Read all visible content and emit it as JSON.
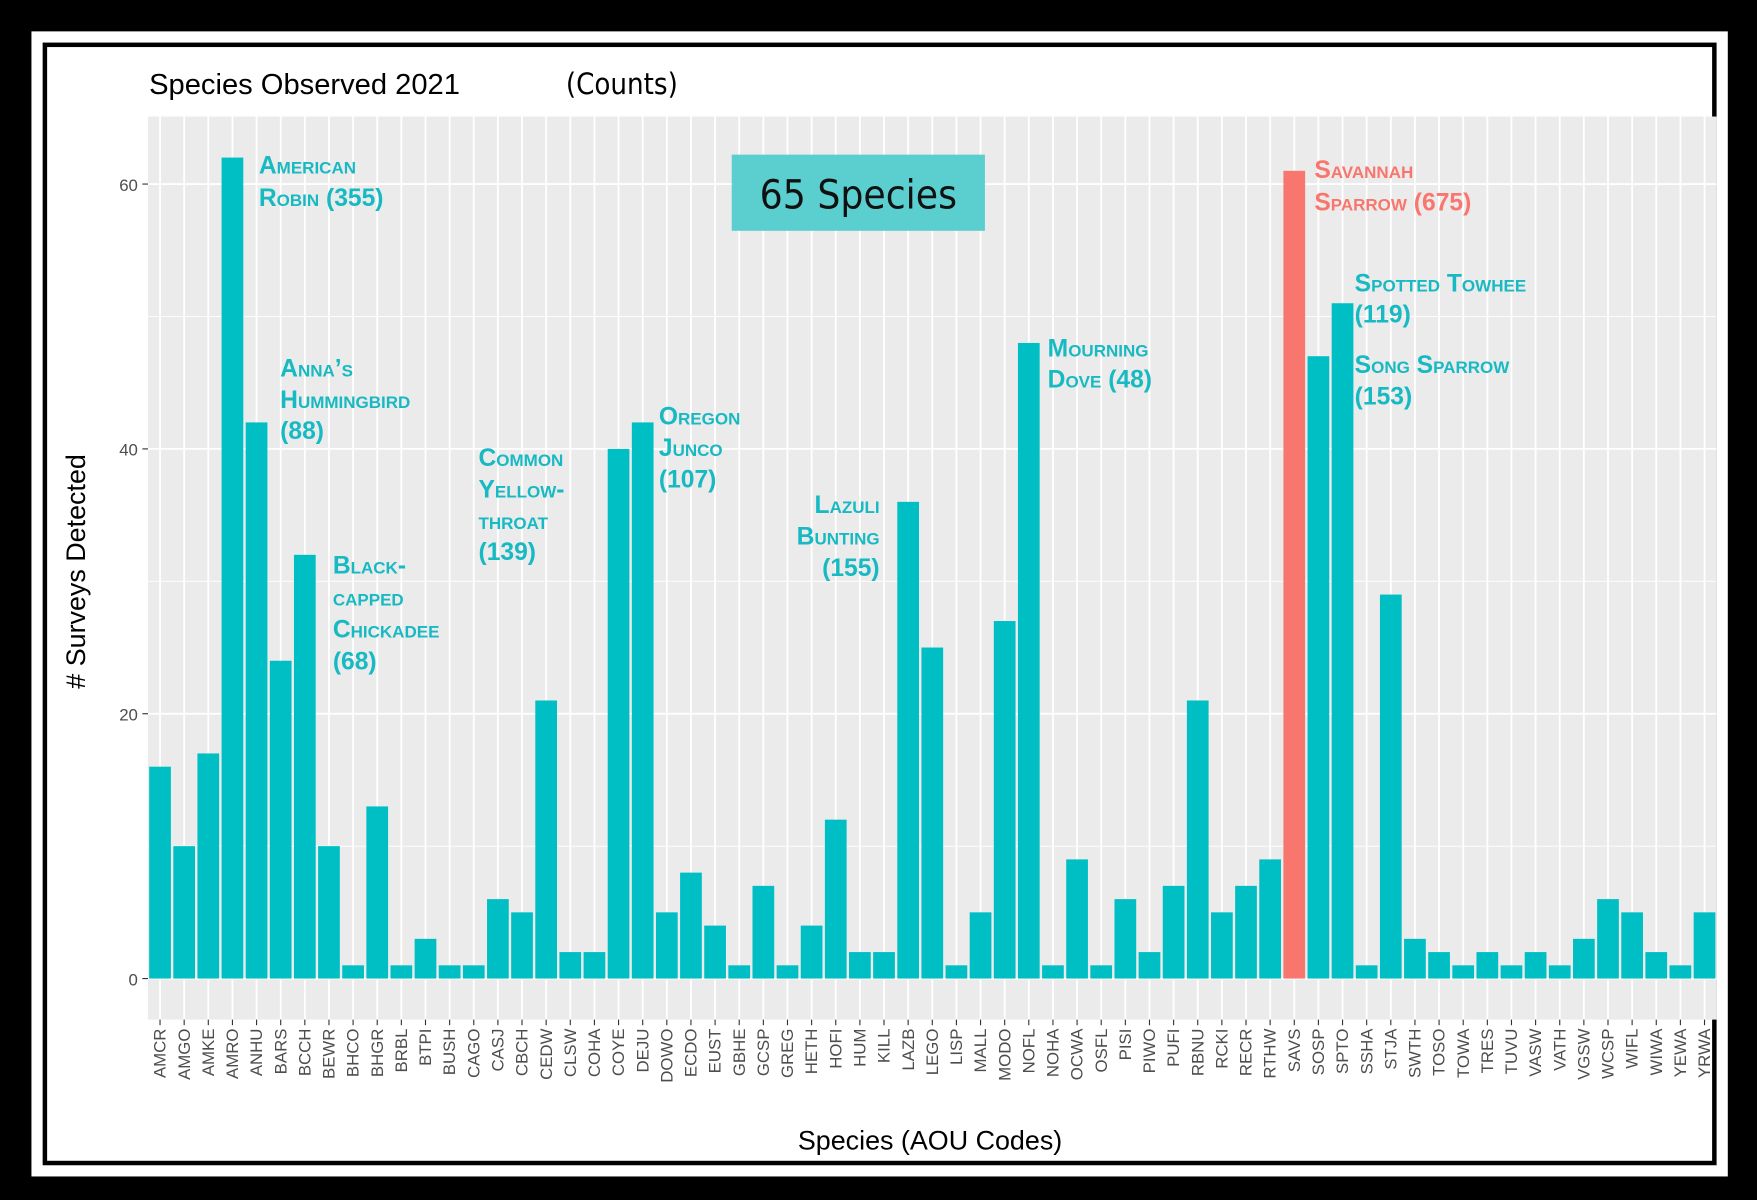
{
  "chart_data": {
    "type": "bar",
    "title": "Species Observed 2021",
    "subtitle": "(Counts)",
    "xlabel": "Species (AOU Codes)",
    "ylabel": "# Surveys Detected",
    "categories": [
      "AMCR",
      "AMGO",
      "AMKE",
      "AMRO",
      "ANHU",
      "BARS",
      "BCCH",
      "BEWR",
      "BHCO",
      "BHGR",
      "BRBL",
      "BTPI",
      "BUSH",
      "CAGO",
      "CASJ",
      "CBCH",
      "CEDW",
      "CLSW",
      "COHA",
      "COYE",
      "DEJU",
      "DOWO",
      "ECDO",
      "EUST",
      "GBHE",
      "GCSP",
      "GREG",
      "HETH",
      "HOFI",
      "HUM",
      "KILL",
      "LAZB",
      "LEGO",
      "LISP",
      "MALL",
      "MODO",
      "NOFL",
      "NOHA",
      "OCWA",
      "OSFL",
      "PISI",
      "PIWO",
      "PUFI",
      "RBNU",
      "RCKI",
      "RECR",
      "RTHW",
      "SAVS",
      "SOSP",
      "SPTO",
      "SSHA",
      "STJA",
      "SWTH",
      "TOSO",
      "TOWA",
      "TRES",
      "TUVU",
      "VASW",
      "VATH",
      "VGSW",
      "WCSP",
      "WIFL",
      "WIWA",
      "YEWA",
      "YRWA"
    ],
    "values": [
      16,
      10,
      17,
      62,
      42,
      24,
      32,
      10,
      1,
      13,
      1,
      3,
      1,
      1,
      6,
      5,
      21,
      2,
      2,
      40,
      42,
      5,
      8,
      4,
      1,
      7,
      1,
      4,
      12,
      2,
      2,
      36,
      25,
      1,
      5,
      27,
      48,
      1,
      9,
      1,
      6,
      2,
      7,
      21,
      5,
      7,
      9,
      61,
      47,
      51,
      1,
      29,
      3,
      2,
      1,
      2,
      1,
      2,
      1,
      3,
      6,
      5,
      2,
      1,
      5
    ],
    "colors": [
      "#00BFC4",
      "#00BFC4",
      "#00BFC4",
      "#00BFC4",
      "#00BFC4",
      "#00BFC4",
      "#00BFC4",
      "#00BFC4",
      "#00BFC4",
      "#00BFC4",
      "#00BFC4",
      "#00BFC4",
      "#00BFC4",
      "#00BFC4",
      "#00BFC4",
      "#00BFC4",
      "#00BFC4",
      "#00BFC4",
      "#00BFC4",
      "#00BFC4",
      "#00BFC4",
      "#00BFC4",
      "#00BFC4",
      "#00BFC4",
      "#00BFC4",
      "#00BFC4",
      "#00BFC4",
      "#00BFC4",
      "#00BFC4",
      "#00BFC4",
      "#00BFC4",
      "#00BFC4",
      "#00BFC4",
      "#00BFC4",
      "#00BFC4",
      "#00BFC4",
      "#00BFC4",
      "#00BFC4",
      "#00BFC4",
      "#00BFC4",
      "#00BFC4",
      "#00BFC4",
      "#00BFC4",
      "#00BFC4",
      "#00BFC4",
      "#00BFC4",
      "#00BFC4",
      "#F8766D",
      "#00BFC4",
      "#00BFC4",
      "#00BFC4",
      "#00BFC4",
      "#00BFC4",
      "#00BFC4",
      "#00BFC4",
      "#00BFC4",
      "#00BFC4",
      "#00BFC4",
      "#00BFC4",
      "#00BFC4",
      "#00BFC4",
      "#00BFC4",
      "#00BFC4",
      "#00BFC4",
      "#00BFC4"
    ],
    "ylim": [
      -3.1,
      65.1
    ],
    "yticks": [
      0,
      20,
      40,
      60
    ],
    "yminorticks": [
      10,
      30,
      50
    ],
    "grid": true,
    "badge": "65 Species",
    "annotations": [
      {
        "lines": [
          "American",
          "Robin (355)"
        ],
        "color": "#17B9C2"
      },
      {
        "lines": [
          "Anna’s",
          "Hummingbird",
          "(88)"
        ],
        "color": "#17B9C2"
      },
      {
        "lines": [
          "Black-",
          "capped",
          "Chickadee",
          "(68)"
        ],
        "color": "#17B9C2"
      },
      {
        "lines": [
          "Common",
          "Yellow-",
          "throat",
          "(139)"
        ],
        "color": "#17B9C2"
      },
      {
        "lines": [
          "Oregon",
          "Junco",
          "(107)"
        ],
        "color": "#17B9C2"
      },
      {
        "lines": [
          "Lazuli",
          "Bunting",
          "(155)"
        ],
        "color": "#17B9C2"
      },
      {
        "lines": [
          "Mourning",
          "Dove (48)"
        ],
        "color": "#17B9C2"
      },
      {
        "lines": [
          "Savannah",
          "Sparrow (675)"
        ],
        "color": "#F8766D"
      },
      {
        "lines": [
          "Spotted Towhee",
          "(119)"
        ],
        "color": "#17B9C2"
      },
      {
        "lines": [
          "Song Sparrow",
          "(153)"
        ],
        "color": "#17B9C2"
      }
    ]
  }
}
